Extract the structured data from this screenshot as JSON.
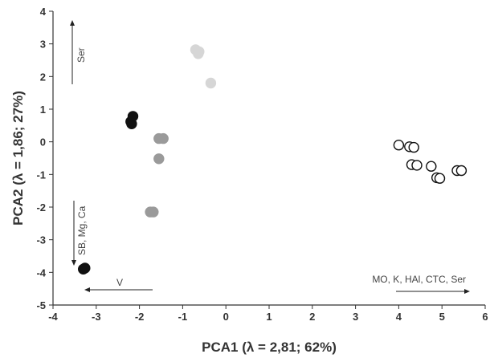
{
  "chart_data": {
    "type": "scatter",
    "xlabel": "PCA1 (λ = 2,81; 62%)",
    "ylabel": "PCA2 (λ = 1,86; 27%)",
    "xlim": [
      -4,
      6
    ],
    "ylim": [
      -5,
      4
    ],
    "x_ticks": [
      "-4",
      "-3",
      "-2",
      "-1",
      "0",
      "1",
      "2",
      "3",
      "4",
      "5",
      "6"
    ],
    "y_ticks": [
      "-5",
      "-4",
      "-3",
      "-2",
      "-1",
      "0",
      "1",
      "2",
      "3",
      "4"
    ],
    "grid": false,
    "legend": "none",
    "series": [
      {
        "style": "light-gray-filled",
        "fill": "#d6d6d6",
        "stroke": "#d6d6d6",
        "points": [
          [
            -0.7,
            2.82
          ],
          [
            -0.62,
            2.76
          ],
          [
            -0.64,
            2.7
          ],
          [
            -0.35,
            1.8
          ]
        ]
      },
      {
        "style": "black-filled",
        "fill": "#111111",
        "stroke": "#111111",
        "points": [
          [
            -2.2,
            0.62
          ],
          [
            -2.18,
            0.55
          ],
          [
            -2.15,
            0.78
          ],
          [
            -3.3,
            -3.9
          ],
          [
            -3.26,
            -3.87
          ]
        ]
      },
      {
        "style": "gray-filled",
        "fill": "#9a9a9a",
        "stroke": "#9a9a9a",
        "points": [
          [
            -1.55,
            0.1
          ],
          [
            -1.45,
            0.1
          ],
          [
            -1.55,
            -0.52
          ],
          [
            -1.75,
            -2.15
          ],
          [
            -1.68,
            -2.15
          ]
        ]
      },
      {
        "style": "open-circles",
        "fill": "#ffffff",
        "stroke": "#111111",
        "points": [
          [
            4.0,
            -0.1
          ],
          [
            4.25,
            -0.15
          ],
          [
            4.35,
            -0.17
          ],
          [
            4.3,
            -0.7
          ],
          [
            4.42,
            -0.72
          ],
          [
            4.75,
            -0.75
          ],
          [
            4.88,
            -1.1
          ],
          [
            4.95,
            -1.12
          ],
          [
            5.35,
            -0.88
          ],
          [
            5.45,
            -0.88
          ]
        ]
      }
    ],
    "annotations": [
      {
        "text": "Ser",
        "orientation": "vertical"
      },
      {
        "text": "SB, Mg, Ca",
        "orientation": "vertical"
      },
      {
        "text": "V",
        "orientation": "horizontal"
      },
      {
        "text": "MO, K, HAl, CTC, Ser",
        "orientation": "horizontal"
      }
    ]
  }
}
